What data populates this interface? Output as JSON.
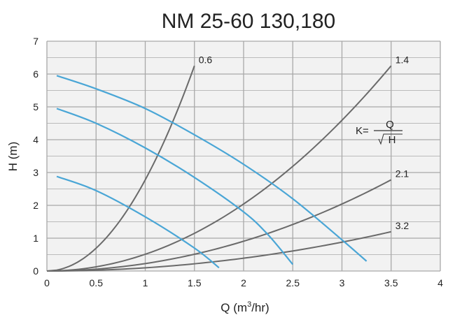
{
  "chart_data": {
    "type": "line",
    "title": "NM 25-60 130,180",
    "xlabel_main": "Q (m",
    "xlabel_sup": "3",
    "xlabel_tail": "/hr)",
    "ylabel": "H (m)",
    "xlim": [
      0,
      4
    ],
    "ylim": [
      0,
      7
    ],
    "grid": true,
    "x_ticks": [
      "0",
      "0.5",
      "1",
      "1.5",
      "2",
      "2.5",
      "3",
      "3.5",
      "4"
    ],
    "y_ticks": [
      "0",
      "1",
      "2",
      "3",
      "4",
      "5",
      "6",
      "7"
    ],
    "pump_curves": [
      {
        "x": [
          0.1,
          0.5,
          1,
          1.5,
          2,
          2.5,
          3,
          3.25
        ],
        "y": [
          5.95,
          5.55,
          4.95,
          4.15,
          3.25,
          2.2,
          0.95,
          0.3
        ]
      },
      {
        "x": [
          0.1,
          0.5,
          1,
          1.5,
          2,
          2.25,
          2.5
        ],
        "y": [
          4.95,
          4.5,
          3.75,
          2.85,
          1.8,
          1.1,
          0.2
        ]
      },
      {
        "x": [
          0.1,
          0.5,
          1,
          1.5,
          1.75
        ],
        "y": [
          2.88,
          2.45,
          1.65,
          0.7,
          0.1
        ]
      }
    ],
    "system_curves": [
      {
        "label": "0.6",
        "k": 0.6,
        "q_max": 1.5
      },
      {
        "label": "1.4",
        "k": 1.4,
        "q_max": 3.5
      },
      {
        "label": "2.1",
        "k": 2.1,
        "q_max": 3.5
      },
      {
        "label": "3.2",
        "k": 3.2,
        "q_max": 3.5
      }
    ],
    "annotation": {
      "lhs": "K=",
      "numerator": "Q",
      "denominator": "H"
    },
    "colors": {
      "pump": "#4aa6d6",
      "system": "#6a6a6a",
      "grid": "#a8a8a8",
      "plot_bg": "#f2f2f2"
    }
  }
}
